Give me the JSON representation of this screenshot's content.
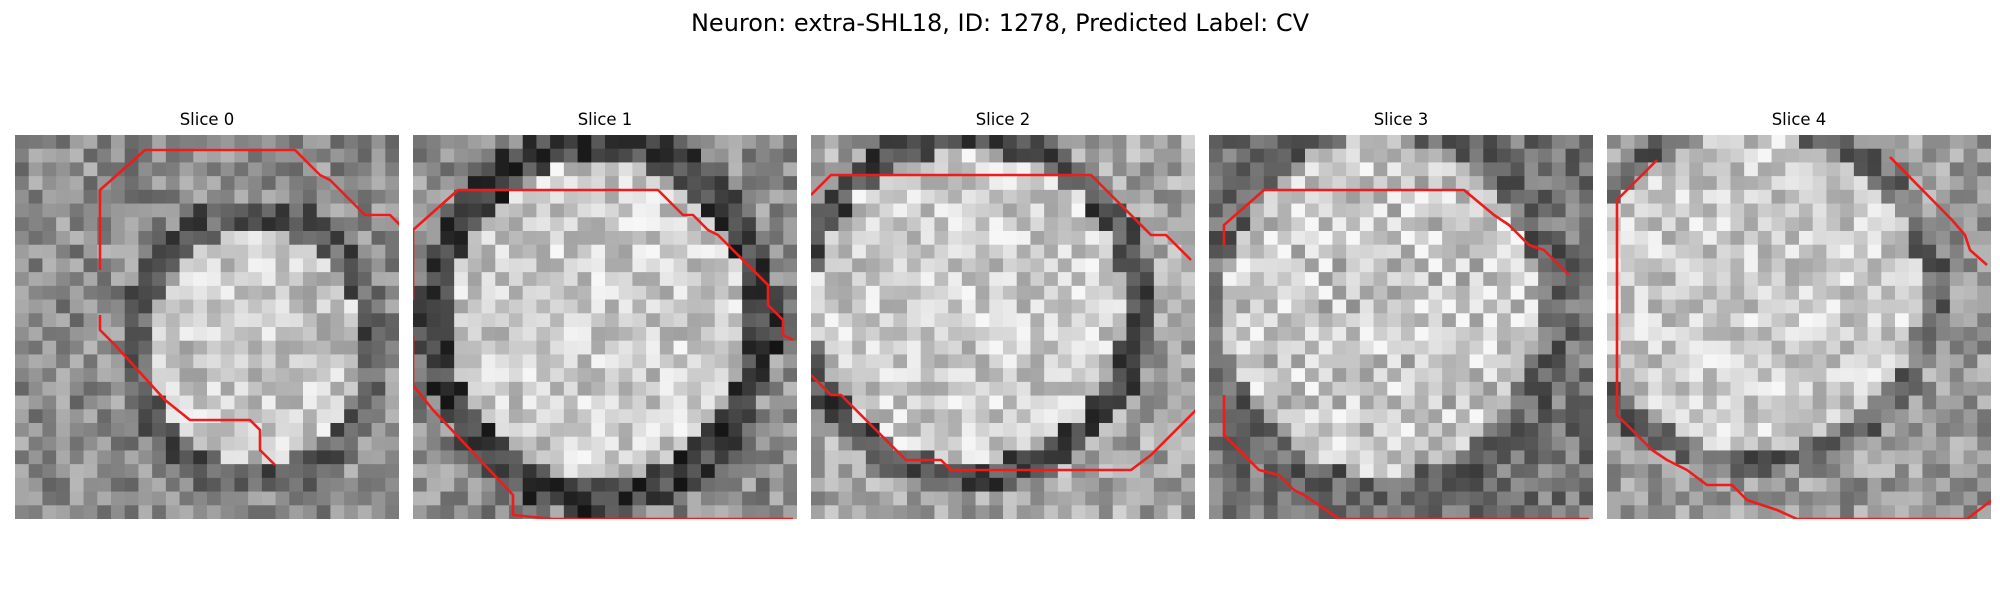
{
  "figure": {
    "title": "Neuron: extra-SHL18, ID: 1278, Predicted Label: CV",
    "contour_color": "#ee1c1c",
    "slices": [
      {
        "label": "Slice 0",
        "seed": 11,
        "shape": "left-blob"
      },
      {
        "label": "Slice 1",
        "seed": 23,
        "shape": "full-cell"
      },
      {
        "label": "Slice 2",
        "seed": 37,
        "shape": "wide-cell"
      },
      {
        "label": "Slice 3",
        "seed": 53,
        "shape": "checker-cell"
      },
      {
        "label": "Slice 4",
        "seed": 71,
        "shape": "offset-cell"
      }
    ]
  }
}
